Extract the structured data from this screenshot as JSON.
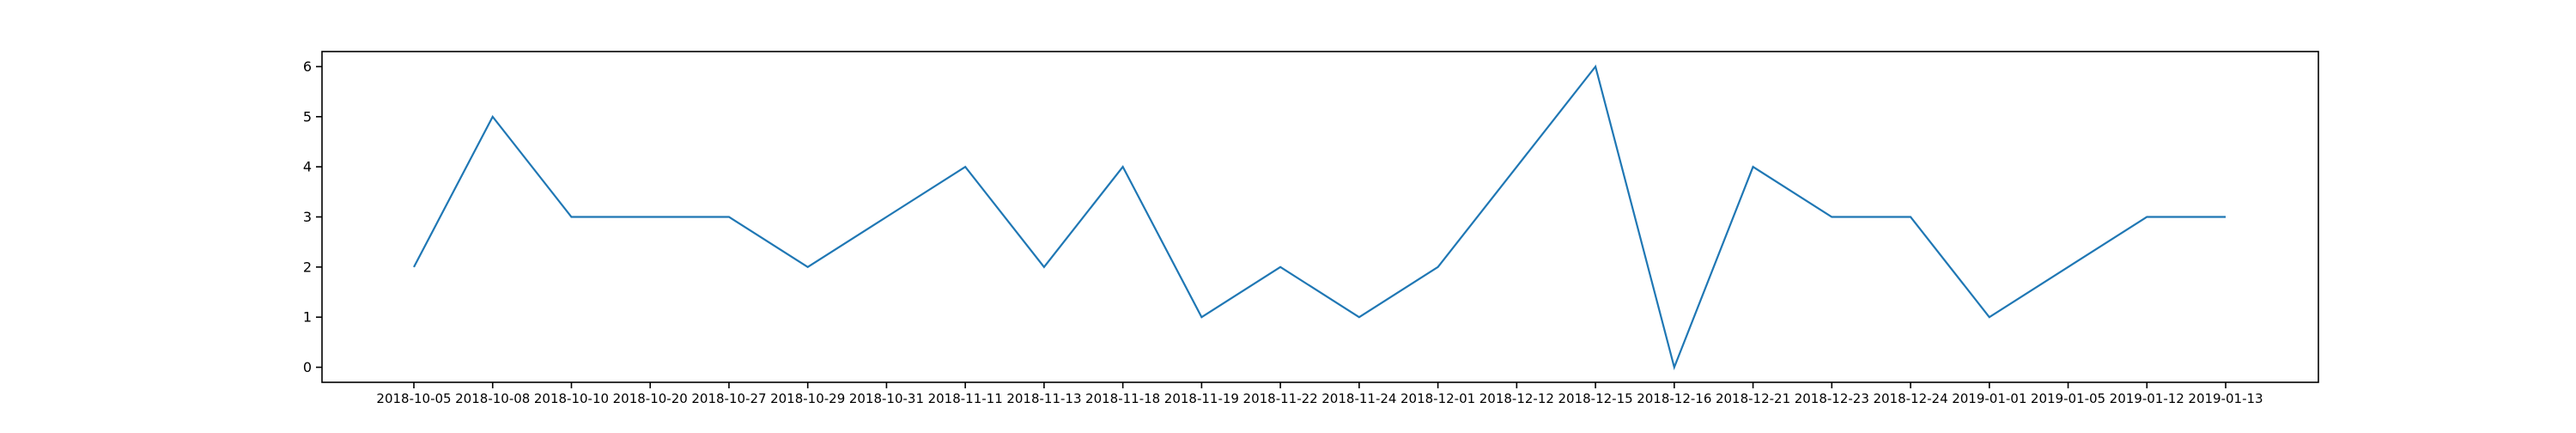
{
  "chart_data": {
    "type": "line",
    "title": "",
    "xlabel": "",
    "ylabel": "",
    "categories": [
      "2018-10-05",
      "2018-10-08",
      "2018-10-10",
      "2018-10-20",
      "2018-10-27",
      "2018-10-29",
      "2018-10-31",
      "2018-11-11",
      "2018-11-13",
      "2018-11-18",
      "2018-11-19",
      "2018-11-22",
      "2018-11-24",
      "2018-12-01",
      "2018-12-12",
      "2018-12-15",
      "2018-12-16",
      "2018-12-21",
      "2018-12-23",
      "2018-12-24",
      "2019-01-01",
      "2019-01-05",
      "2019-01-12",
      "2019-01-13"
    ],
    "series": [
      {
        "values": [
          2,
          5,
          3,
          3,
          3,
          2,
          3,
          4,
          2,
          4,
          1,
          2,
          1,
          2,
          4,
          6,
          0,
          4,
          3,
          3,
          1,
          2,
          3,
          3
        ],
        "color": "#1f77b4"
      }
    ],
    "yticks": [
      0,
      1,
      2,
      3,
      4,
      5,
      6
    ],
    "ylim": [
      -0.3,
      6.3
    ],
    "grid": false,
    "legend": false
  }
}
